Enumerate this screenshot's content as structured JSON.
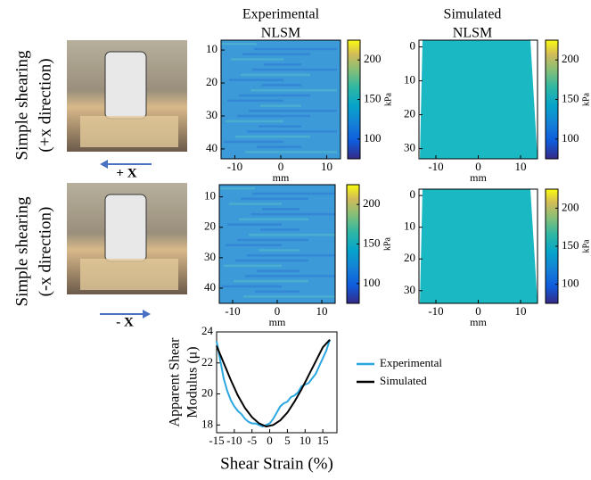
{
  "row_labels": [
    [
      "Simple shearing",
      "(+x direction)"
    ],
    [
      "Simple shearing",
      "(-x direction)"
    ]
  ],
  "arrow_labels": [
    "+ X",
    "- X"
  ],
  "column_titles": [
    [
      "Experimental",
      "NLSM"
    ],
    [
      "Simulated",
      "NLSM"
    ]
  ],
  "chart_data": [
    {
      "type": "heatmap",
      "variant": "experimental",
      "xlabel": "mm",
      "xlim": [
        -13,
        13
      ],
      "xticks": [
        -10,
        0,
        10
      ],
      "ylim": [
        43,
        7
      ],
      "yticks": [
        10,
        20,
        30,
        40
      ],
      "clim": [
        75,
        225
      ],
      "cticks": [
        100,
        150,
        200
      ],
      "clabel": "kPa"
    },
    {
      "type": "heatmap",
      "variant": "simulated",
      "xlabel": "mm",
      "xlim": [
        -14,
        14
      ],
      "xticks": [
        -10,
        0,
        10
      ],
      "ylim": [
        33,
        -2
      ],
      "yticks": [
        0,
        10,
        20,
        30
      ],
      "clim": [
        75,
        225
      ],
      "cticks": [
        100,
        150,
        200
      ],
      "clabel": "kPa"
    },
    {
      "type": "heatmap",
      "variant": "experimental",
      "xlabel": "mm",
      "xlim": [
        -13,
        13
      ],
      "xticks": [
        -10,
        0,
        10
      ],
      "ylim": [
        45,
        6
      ],
      "yticks": [
        10,
        20,
        30,
        40
      ],
      "clim": [
        75,
        225
      ],
      "cticks": [
        100,
        150,
        200
      ],
      "clabel": "kPa"
    },
    {
      "type": "heatmap",
      "variant": "simulated",
      "xlabel": "mm",
      "xlim": [
        -14,
        14
      ],
      "xticks": [
        -10,
        0,
        10
      ],
      "ylim": [
        34,
        -2
      ],
      "yticks": [
        0,
        10,
        20,
        30
      ],
      "clim": [
        75,
        225
      ],
      "cticks": [
        100,
        150,
        200
      ],
      "clabel": "kPa"
    },
    {
      "type": "line",
      "xlabel": "Shear Strain (%)",
      "ylabel": [
        "Apparent Shear",
        "Modulus (μ)"
      ],
      "xlim": [
        -15,
        19
      ],
      "xticks": [
        -15,
        -10,
        -5,
        0,
        5,
        10,
        15
      ],
      "ylim": [
        17.5,
        24
      ],
      "yticks": [
        18,
        20,
        22,
        24
      ],
      "series": [
        {
          "name": "Experimental",
          "color": "#2aa7e0",
          "x": [
            -15,
            -14,
            -13,
            -12,
            -11,
            -10,
            -9,
            -8,
            -7,
            -6,
            -5,
            -4,
            -3,
            -2,
            -1,
            0,
            1,
            2,
            3,
            4,
            5,
            6,
            7,
            8,
            9,
            10,
            11,
            12,
            13,
            14,
            15,
            16,
            17
          ],
          "values": [
            23.4,
            22.2,
            21,
            20.2,
            19.6,
            19.2,
            18.9,
            18.7,
            18.4,
            18.2,
            18.1,
            18.1,
            18,
            17.9,
            18,
            18.1,
            18.4,
            18.8,
            19.2,
            19.4,
            19.5,
            19.8,
            19.9,
            20.1,
            20.5,
            20.6,
            20.7,
            21,
            21.3,
            21.8,
            22.3,
            22.8,
            23.5
          ]
        },
        {
          "name": "Simulated",
          "color": "#000000",
          "x": [
            -15,
            -13,
            -11,
            -9,
            -7,
            -5,
            -3,
            -1,
            1,
            3,
            5,
            7,
            9,
            11,
            13,
            15,
            17
          ],
          "values": [
            23.1,
            22,
            20.9,
            19.9,
            19.1,
            18.5,
            18.1,
            17.9,
            18,
            18.3,
            18.8,
            19.5,
            20.3,
            21.2,
            22.1,
            23,
            23.5
          ]
        }
      ]
    }
  ]
}
